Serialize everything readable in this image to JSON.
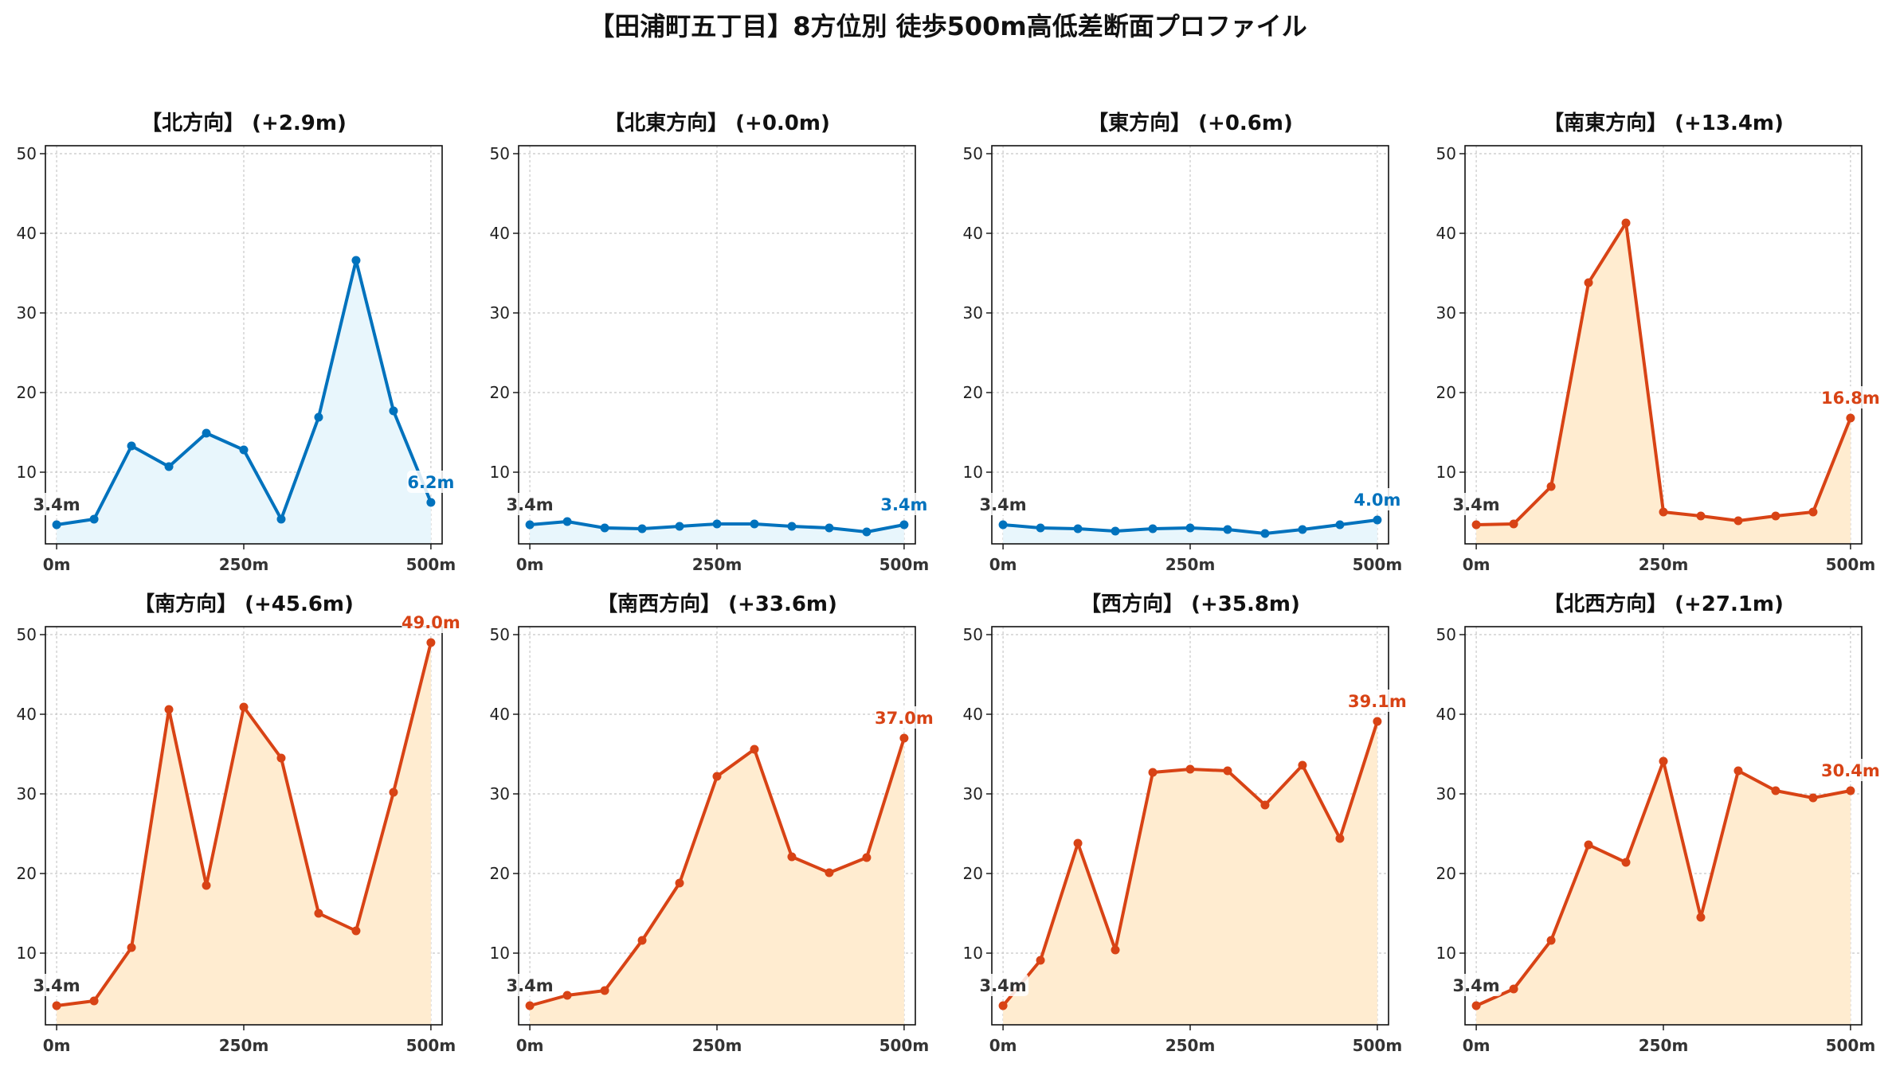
{
  "title": "【田浦町五丁目】8方位別 徒歩500m高低差断面プロファイル",
  "colors": {
    "flat_line": "#0072bd",
    "flat_fill": "#e8f6fc",
    "climb_line": "#d84315",
    "climb_fill": "#ffecd0"
  },
  "chart_data": [
    {
      "type": "area",
      "title": "【北方向】 (+2.9m)",
      "color_scheme": "flat",
      "x": [
        0,
        50,
        100,
        150,
        200,
        250,
        300,
        350,
        400,
        450,
        500
      ],
      "y": [
        3.4,
        4.1,
        13.3,
        10.7,
        14.9,
        12.8,
        4.1,
        16.9,
        36.6,
        17.7,
        6.2
      ],
      "start_label": "3.4m",
      "end_label": "6.2m",
      "x_tick_labels": [
        "0m",
        "250m",
        "500m"
      ],
      "y_ticks": [
        10,
        20,
        30,
        40,
        50
      ],
      "ylim": [
        1,
        51
      ],
      "xlim": [
        -15,
        515
      ],
      "grid": true
    },
    {
      "type": "area",
      "title": "【北東方向】 (+0.0m)",
      "color_scheme": "flat",
      "x": [
        0,
        50,
        100,
        150,
        200,
        250,
        300,
        350,
        400,
        450,
        500
      ],
      "y": [
        3.4,
        3.8,
        3.0,
        2.9,
        3.2,
        3.5,
        3.5,
        3.2,
        3.0,
        2.5,
        3.4
      ],
      "start_label": "3.4m",
      "end_label": "3.4m",
      "x_tick_labels": [
        "0m",
        "250m",
        "500m"
      ],
      "y_ticks": [
        10,
        20,
        30,
        40,
        50
      ],
      "ylim": [
        1,
        51
      ],
      "xlim": [
        -15,
        515
      ],
      "grid": true
    },
    {
      "type": "area",
      "title": "【東方向】 (+0.6m)",
      "color_scheme": "flat",
      "x": [
        0,
        50,
        100,
        150,
        200,
        250,
        300,
        350,
        400,
        450,
        500
      ],
      "y": [
        3.4,
        3.0,
        2.9,
        2.6,
        2.9,
        3.0,
        2.8,
        2.3,
        2.8,
        3.4,
        4.0
      ],
      "start_label": "3.4m",
      "end_label": "4.0m",
      "x_tick_labels": [
        "0m",
        "250m",
        "500m"
      ],
      "y_ticks": [
        10,
        20,
        30,
        40,
        50
      ],
      "ylim": [
        1,
        51
      ],
      "xlim": [
        -15,
        515
      ],
      "grid": true
    },
    {
      "type": "area",
      "title": "【南東方向】 (+13.4m)",
      "color_scheme": "climb",
      "x": [
        0,
        50,
        100,
        150,
        200,
        250,
        300,
        350,
        400,
        450,
        500
      ],
      "y": [
        3.4,
        3.5,
        8.2,
        33.8,
        41.3,
        5.0,
        4.5,
        3.9,
        4.5,
        5.0,
        16.8
      ],
      "start_label": "3.4m",
      "end_label": "16.8m",
      "x_tick_labels": [
        "0m",
        "250m",
        "500m"
      ],
      "y_ticks": [
        10,
        20,
        30,
        40,
        50
      ],
      "ylim": [
        1,
        51
      ],
      "xlim": [
        -15,
        515
      ],
      "grid": true
    },
    {
      "type": "area",
      "title": "【南方向】 (+45.6m)",
      "color_scheme": "climb",
      "x": [
        0,
        50,
        100,
        150,
        200,
        250,
        300,
        350,
        400,
        450,
        500
      ],
      "y": [
        3.4,
        4.0,
        10.7,
        40.6,
        18.5,
        40.9,
        34.5,
        15.0,
        12.8,
        30.2,
        49.0
      ],
      "start_label": "3.4m",
      "end_label": "49.0m",
      "x_tick_labels": [
        "0m",
        "250m",
        "500m"
      ],
      "y_ticks": [
        10,
        20,
        30,
        40,
        50
      ],
      "ylim": [
        1,
        51
      ],
      "xlim": [
        -15,
        515
      ],
      "grid": true
    },
    {
      "type": "area",
      "title": "【南西方向】 (+33.6m)",
      "color_scheme": "climb",
      "x": [
        0,
        50,
        100,
        150,
        200,
        250,
        300,
        350,
        400,
        450,
        500
      ],
      "y": [
        3.4,
        4.7,
        5.3,
        11.6,
        18.8,
        32.2,
        35.6,
        22.1,
        20.1,
        22.0,
        37.0
      ],
      "start_label": "3.4m",
      "end_label": "37.0m",
      "x_tick_labels": [
        "0m",
        "250m",
        "500m"
      ],
      "y_ticks": [
        10,
        20,
        30,
        40,
        50
      ],
      "ylim": [
        1,
        51
      ],
      "xlim": [
        -15,
        515
      ],
      "grid": true
    },
    {
      "type": "area",
      "title": "【西方向】 (+35.8m)",
      "color_scheme": "climb",
      "x": [
        0,
        50,
        100,
        150,
        200,
        250,
        300,
        350,
        400,
        450,
        500
      ],
      "y": [
        3.4,
        9.1,
        23.8,
        10.4,
        32.7,
        33.1,
        32.9,
        28.6,
        33.6,
        24.4,
        39.1
      ],
      "start_label": "3.4m",
      "end_label": "39.1m",
      "x_tick_labels": [
        "0m",
        "250m",
        "500m"
      ],
      "y_ticks": [
        10,
        20,
        30,
        40,
        50
      ],
      "ylim": [
        1,
        51
      ],
      "xlim": [
        -15,
        515
      ],
      "grid": true
    },
    {
      "type": "area",
      "title": "【北西方向】 (+27.1m)",
      "color_scheme": "climb",
      "x": [
        0,
        50,
        100,
        150,
        200,
        250,
        300,
        350,
        400,
        450,
        500
      ],
      "y": [
        3.4,
        5.5,
        11.6,
        23.6,
        21.4,
        34.1,
        14.5,
        32.9,
        30.4,
        29.5,
        30.4
      ],
      "start_label": "3.4m",
      "end_label": "30.4m",
      "x_tick_labels": [
        "0m",
        "250m",
        "500m"
      ],
      "y_ticks": [
        10,
        20,
        30,
        40,
        50
      ],
      "ylim": [
        1,
        51
      ],
      "xlim": [
        -15,
        515
      ],
      "grid": true
    }
  ]
}
